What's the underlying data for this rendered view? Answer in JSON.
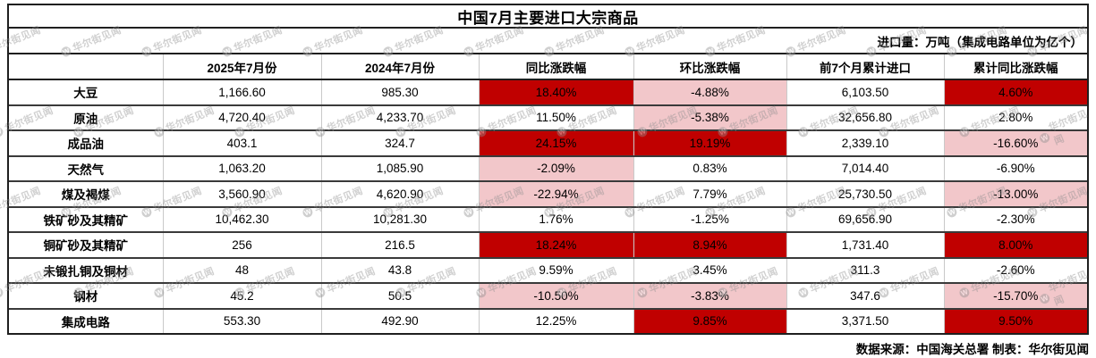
{
  "title": "中国7月主要进口大宗商品",
  "unit_note": "进口量：万吨（集成电路单位为亿个）",
  "footer": "数据来源：中国海关总署 制表：华尔街见闻",
  "watermark": {
    "text": "华尔街见闻",
    "logo": "W"
  },
  "colors": {
    "highlight_strong_red": "#c00000",
    "highlight_light_pink": "#f2c7ca",
    "border_dark": "#1f1f1f",
    "border_row": "#3a3a3a",
    "border_light": "#c9c9c9",
    "watermark_gray": "#8f8f8f"
  },
  "chart_data": {
    "type": "table",
    "title": "中国7月主要进口大宗商品",
    "unit_note": "进口量：万吨（集成电路单位为亿个）",
    "source_note": "数据来源：中国海关总署 制表：华尔街见闻",
    "columns": [
      "",
      "2025年7月份",
      "2024年7月份",
      "同比涨跌幅",
      "环比涨跌幅",
      "前7个月累计进口",
      "累计同比涨跌幅"
    ],
    "rows": [
      {
        "cells": [
          "大豆",
          "1,166.60",
          "985.30",
          "18.40%",
          "-4.88%",
          "6,103.50",
          "4.60%"
        ],
        "highlight": [
          "",
          "",
          "",
          "red",
          "pink",
          "",
          "red"
        ]
      },
      {
        "cells": [
          "原油",
          "4,720.40",
          "4,233.70",
          "11.50%",
          "-5.38%",
          "32,656.80",
          "2.80%"
        ],
        "highlight": [
          "",
          "",
          "",
          "",
          "pink",
          "",
          ""
        ]
      },
      {
        "cells": [
          "成品油",
          "403.1",
          "324.7",
          "24.15%",
          "19.19%",
          "2,339.10",
          "-16.60%"
        ],
        "highlight": [
          "",
          "",
          "",
          "red",
          "red",
          "",
          "pink"
        ]
      },
      {
        "cells": [
          "天然气",
          "1,063.20",
          "1,085.90",
          "-2.09%",
          "0.83%",
          "7,014.40",
          "-6.90%"
        ],
        "highlight": [
          "",
          "",
          "",
          "pink",
          "",
          "",
          ""
        ]
      },
      {
        "cells": [
          "煤及褐煤",
          "3,560.90",
          "4,620.90",
          "-22.94%",
          "7.79%",
          "25,730.50",
          "-13.00%"
        ],
        "highlight": [
          "",
          "",
          "",
          "pink",
          "",
          "",
          "pink"
        ]
      },
      {
        "cells": [
          "铁矿砂及其精矿",
          "10,462.30",
          "10,281.30",
          "1.76%",
          "-1.25%",
          "69,656.90",
          "-2.30%"
        ],
        "highlight": [
          "",
          "",
          "",
          "",
          "",
          "",
          ""
        ]
      },
      {
        "cells": [
          "铜矿砂及其精矿",
          "256",
          "216.5",
          "18.24%",
          "8.94%",
          "1,731.40",
          "8.00%"
        ],
        "highlight": [
          "",
          "",
          "",
          "red",
          "red",
          "",
          "red"
        ]
      },
      {
        "cells": [
          "未锻扎铜及铜材",
          "48",
          "43.8",
          "9.59%",
          "3.45%",
          "311.3",
          "-2.60%"
        ],
        "highlight": [
          "",
          "",
          "",
          "",
          "",
          "",
          ""
        ]
      },
      {
        "cells": [
          "钢材",
          "45.2",
          "50.5",
          "-10.50%",
          "-3.83%",
          "347.6",
          "-15.70%"
        ],
        "highlight": [
          "",
          "",
          "",
          "pink",
          "pink",
          "",
          "pink"
        ]
      },
      {
        "cells": [
          "集成电路",
          "553.30",
          "492.90",
          "12.25%",
          "9.85%",
          "3,371.50",
          "9.50%"
        ],
        "highlight": [
          "",
          "",
          "",
          "",
          "red",
          "",
          "red"
        ]
      }
    ]
  }
}
